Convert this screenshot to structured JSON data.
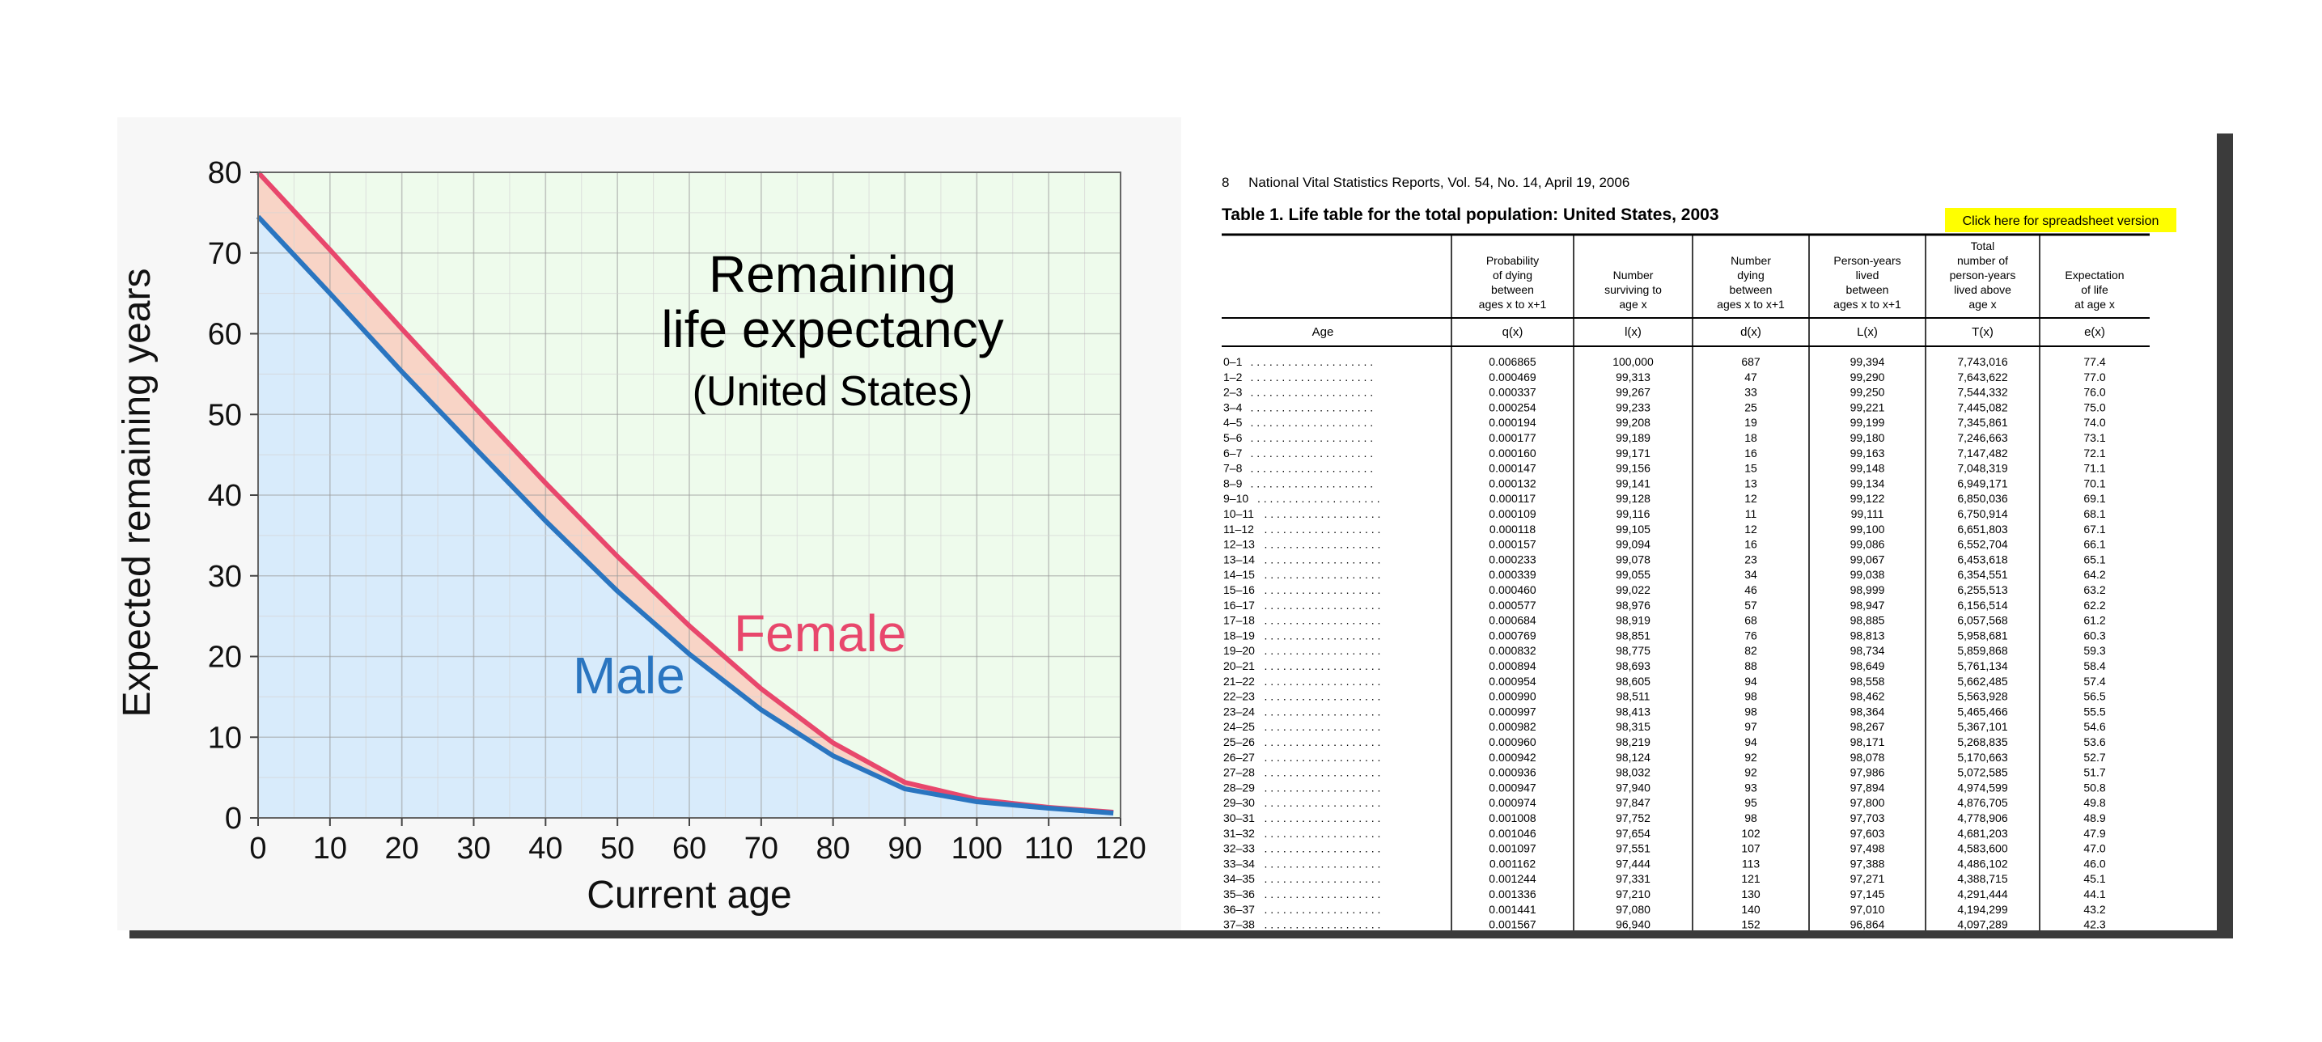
{
  "chart_data": {
    "type": "line",
    "title": "Remaining",
    "title_line2": "life expectancy",
    "subtitle": "(United States)",
    "xlabel": "Current age",
    "ylabel": "Expected remaining years",
    "xlim": [
      0,
      120
    ],
    "ylim": [
      0,
      80
    ],
    "x_ticks": [
      0,
      10,
      20,
      30,
      40,
      50,
      60,
      70,
      80,
      90,
      100,
      110,
      120
    ],
    "y_ticks": [
      0,
      10,
      20,
      30,
      40,
      50,
      60,
      70,
      80
    ],
    "grid": true,
    "series": [
      {
        "name": "Female",
        "color": "#e8476c",
        "x": [
          0,
          10,
          20,
          30,
          40,
          50,
          60,
          70,
          80,
          90,
          100,
          110,
          119
        ],
        "y": [
          80,
          70.4,
          60.6,
          51,
          41.5,
          32.4,
          23.8,
          16,
          9.3,
          4.4,
          2.3,
          1.3,
          0.7
        ]
      },
      {
        "name": "Male",
        "color": "#2a75c0",
        "x": [
          0,
          10,
          20,
          30,
          40,
          50,
          60,
          70,
          80,
          90,
          100,
          110,
          119
        ],
        "y": [
          74.5,
          65,
          55.3,
          46,
          36.8,
          28.1,
          20.3,
          13.4,
          7.7,
          3.6,
          2,
          1.2,
          0.6
        ]
      }
    ],
    "annotations": {
      "female_label": "Female",
      "male_label": "Male"
    },
    "colors": {
      "female_fill": "#f8d4c6",
      "male_fill": "#d8ebfb",
      "background_fill": "#eefbec"
    }
  },
  "table": {
    "header_line": "8     National Vital Statistics Reports, Vol. 54, No. 14, April 19, 2006",
    "caption": "Table 1. Life table for the total population: United States, 2003",
    "button_label": "Click here for spreadsheet version",
    "button_color": "#ffff00",
    "age_header": "Age",
    "columns": [
      {
        "lines": [
          "Probability",
          "of dying",
          "between",
          "ages x to x+1"
        ],
        "symbol": "q(x)"
      },
      {
        "lines": [
          "Number",
          "surviving to",
          "age x"
        ],
        "symbol": "l(x)"
      },
      {
        "lines": [
          "Number",
          "dying",
          "between",
          "ages x to x+1"
        ],
        "symbol": "d(x)"
      },
      {
        "lines": [
          "Person-years",
          "lived",
          "between",
          "ages x to x+1"
        ],
        "symbol": "L(x)"
      },
      {
        "lines": [
          "Total",
          "number of",
          "person-years",
          "lived above",
          "age x"
        ],
        "symbol": "T(x)"
      },
      {
        "lines": [
          "Expectation",
          "of life",
          "at age x"
        ],
        "symbol": "e(x)"
      }
    ],
    "rows": [
      [
        "0–1",
        "0.006865",
        "100,000",
        "687",
        "99,394",
        "7,743,016",
        "77.4"
      ],
      [
        "1–2",
        "0.000469",
        "99,313",
        "47",
        "99,290",
        "7,643,622",
        "77.0"
      ],
      [
        "2–3",
        "0.000337",
        "99,267",
        "33",
        "99,250",
        "7,544,332",
        "76.0"
      ],
      [
        "3–4",
        "0.000254",
        "99,233",
        "25",
        "99,221",
        "7,445,082",
        "75.0"
      ],
      [
        "4–5",
        "0.000194",
        "99,208",
        "19",
        "99,199",
        "7,345,861",
        "74.0"
      ],
      [
        "5–6",
        "0.000177",
        "99,189",
        "18",
        "99,180",
        "7,246,663",
        "73.1"
      ],
      [
        "6–7",
        "0.000160",
        "99,171",
        "16",
        "99,163",
        "7,147,482",
        "72.1"
      ],
      [
        "7–8",
        "0.000147",
        "99,156",
        "15",
        "99,148",
        "7,048,319",
        "71.1"
      ],
      [
        "8–9",
        "0.000132",
        "99,141",
        "13",
        "99,134",
        "6,949,171",
        "70.1"
      ],
      [
        "9–10",
        "0.000117",
        "99,128",
        "12",
        "99,122",
        "6,850,036",
        "69.1"
      ],
      [
        "10–11",
        "0.000109",
        "99,116",
        "11",
        "99,111",
        "6,750,914",
        "68.1"
      ],
      [
        "11–12",
        "0.000118",
        "99,105",
        "12",
        "99,100",
        "6,651,803",
        "67.1"
      ],
      [
        "12–13",
        "0.000157",
        "99,094",
        "16",
        "99,086",
        "6,552,704",
        "66.1"
      ],
      [
        "13–14",
        "0.000233",
        "99,078",
        "23",
        "99,067",
        "6,453,618",
        "65.1"
      ],
      [
        "14–15",
        "0.000339",
        "99,055",
        "34",
        "99,038",
        "6,354,551",
        "64.2"
      ],
      [
        "15–16",
        "0.000460",
        "99,022",
        "46",
        "98,999",
        "6,255,513",
        "63.2"
      ],
      [
        "16–17",
        "0.000577",
        "98,976",
        "57",
        "98,947",
        "6,156,514",
        "62.2"
      ],
      [
        "17–18",
        "0.000684",
        "98,919",
        "68",
        "98,885",
        "6,057,568",
        "61.2"
      ],
      [
        "18–19",
        "0.000769",
        "98,851",
        "76",
        "98,813",
        "5,958,681",
        "60.3"
      ],
      [
        "19–20",
        "0.000832",
        "98,775",
        "82",
        "98,734",
        "5,859,868",
        "59.3"
      ],
      [
        "20–21",
        "0.000894",
        "98,693",
        "88",
        "98,649",
        "5,761,134",
        "58.4"
      ],
      [
        "21–22",
        "0.000954",
        "98,605",
        "94",
        "98,558",
        "5,662,485",
        "57.4"
      ],
      [
        "22–23",
        "0.000990",
        "98,511",
        "98",
        "98,462",
        "5,563,928",
        "56.5"
      ],
      [
        "23–24",
        "0.000997",
        "98,413",
        "98",
        "98,364",
        "5,465,466",
        "55.5"
      ],
      [
        "24–25",
        "0.000982",
        "98,315",
        "97",
        "98,267",
        "5,367,101",
        "54.6"
      ],
      [
        "25–26",
        "0.000960",
        "98,219",
        "94",
        "98,171",
        "5,268,835",
        "53.6"
      ],
      [
        "26–27",
        "0.000942",
        "98,124",
        "92",
        "98,078",
        "5,170,663",
        "52.7"
      ],
      [
        "27–28",
        "0.000936",
        "98,032",
        "92",
        "97,986",
        "5,072,585",
        "51.7"
      ],
      [
        "28–29",
        "0.000947",
        "97,940",
        "93",
        "97,894",
        "4,974,599",
        "50.8"
      ],
      [
        "29–30",
        "0.000974",
        "97,847",
        "95",
        "97,800",
        "4,876,705",
        "49.8"
      ],
      [
        "30–31",
        "0.001008",
        "97,752",
        "98",
        "97,703",
        "4,778,906",
        "48.9"
      ],
      [
        "31–32",
        "0.001046",
        "97,654",
        "102",
        "97,603",
        "4,681,203",
        "47.9"
      ],
      [
        "32–33",
        "0.001097",
        "97,551",
        "107",
        "97,498",
        "4,583,600",
        "47.0"
      ],
      [
        "33–34",
        "0.001162",
        "97,444",
        "113",
        "97,388",
        "4,486,102",
        "46.0"
      ],
      [
        "34–35",
        "0.001244",
        "97,331",
        "121",
        "97,271",
        "4,388,715",
        "45.1"
      ],
      [
        "35–36",
        "0.001336",
        "97,210",
        "130",
        "97,145",
        "4,291,444",
        "44.1"
      ],
      [
        "36–37",
        "0.001441",
        "97,080",
        "140",
        "97,010",
        "4,194,299",
        "43.2"
      ],
      [
        "37–38",
        "0.001567",
        "96,940",
        "152",
        "96,864",
        "4,097,289",
        "42.3"
      ]
    ]
  }
}
